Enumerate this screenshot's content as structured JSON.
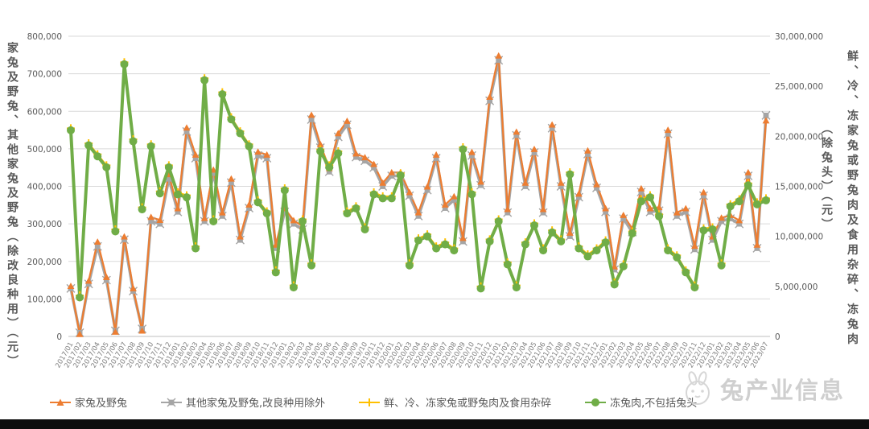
{
  "watermark": {
    "text": "兔产业信息"
  },
  "chart_data": {
    "type": "line",
    "title": "",
    "grid": true,
    "legend_position": "bottom",
    "x": [
      "2017/01",
      "2017/02",
      "2017/03",
      "2017/04",
      "2017/05",
      "2017/06",
      "2017/07",
      "2017/08",
      "2017/09",
      "2017/10",
      "2017/11",
      "2017/12",
      "2018/01",
      "2018/02",
      "2018/03",
      "2018/04",
      "2018/05",
      "2018/06",
      "2018/07",
      "2018/08",
      "2018/09",
      "2018/10",
      "2018/11",
      "2018/12",
      "2019/01",
      "2019/02",
      "2019/03",
      "2019/04",
      "2019/05",
      "2019/06",
      "2019/07",
      "2019/08",
      "2019/09",
      "2019/10",
      "2019/11",
      "2019/12",
      "2020/01",
      "2020/02",
      "2020/03",
      "2020/04",
      "2020/05",
      "2020/06",
      "2020/07",
      "2020/08",
      "2020/09",
      "2020/10",
      "2020/11",
      "2020/12",
      "2021/01",
      "2021/02",
      "2021/03",
      "2021/04",
      "2021/05",
      "2021/06",
      "2021/07",
      "2021/08",
      "2021/09",
      "2021/10",
      "2021/11",
      "2021/12",
      "2022/01",
      "2022/02",
      "2022/03",
      "2022/04",
      "2022/05",
      "2022/06",
      "2022/07",
      "2022/08",
      "2022/09",
      "2022/10",
      "2022/11",
      "2022/12",
      "2023/01",
      "2023/02",
      "2023/03",
      "2023/04",
      "2023/05",
      "2023/06",
      "2023/07"
    ],
    "left_axis": {
      "title": "家兔及野兔、其他家兔及野兔（除改良种用）（元）",
      "min": 0,
      "max": 800000,
      "step": 100000
    },
    "right_axis": {
      "title": "鲜、冷、冻家兔或野兔肉及食用杂碎、冻兔肉（除兔头）（元）",
      "title_col1": "鲜、冷、冻家兔或野兔肉及食用杂碎、冻兔肉",
      "title_col2": "（除兔头）（元）",
      "min": 0,
      "max": 30000000,
      "step": 5000000
    },
    "series": [
      {
        "name": "家兔及野兔",
        "axis": "left",
        "color": "#ED7D31",
        "marker": "triangle",
        "line_width": 2.2,
        "values": [
          134000,
          6000,
          148000,
          252000,
          158000,
          12000,
          266000,
          128000,
          15000,
          318000,
          310000,
          432000,
          341000,
          556000,
          484000,
          315000,
          444000,
          330000,
          420000,
          266000,
          351000,
          492000,
          484000,
          244000,
          341000,
          309000,
          294000,
          590000,
          512000,
          448000,
          541000,
          574000,
          487000,
          477000,
          459000,
          409000,
          437000,
          437000,
          384000,
          330000,
          399000,
          484000,
          351000,
          373000,
          262000,
          491000,
          412000,
          638000,
          748000,
          339000,
          545000,
          409000,
          499000,
          339000,
          564000,
          409000,
          276000,
          380000,
          495000,
          405000,
          341000,
          186000,
          323000,
          287000,
          394000,
          341000,
          344000,
          550000,
          330000,
          341000,
          241000,
          384000,
          266000,
          316000,
          323000,
          309000,
          437000,
          244000,
          575000
        ]
      },
      {
        "name": "其他家兔及野兔,改良种用除外",
        "axis": "left",
        "color": "#A5A5A5",
        "marker": "x-square",
        "line_width": 3.5,
        "values": [
          128000,
          10000,
          140000,
          240000,
          150000,
          15000,
          258000,
          121000,
          20000,
          307000,
          300000,
          420000,
          332000,
          546000,
          475000,
          307000,
          435000,
          321000,
          410000,
          257000,
          342000,
          482000,
          475000,
          235000,
          332000,
          300000,
          285000,
          578000,
          503000,
          439000,
          532000,
          564000,
          478000,
          468000,
          450000,
          400000,
          428000,
          428000,
          375000,
          321000,
          390000,
          475000,
          342000,
          364000,
          253000,
          482000,
          403000,
          628000,
          736000,
          330000,
          536000,
          400000,
          490000,
          330000,
          555000,
          400000,
          267000,
          371000,
          486000,
          396000,
          332000,
          178000,
          314000,
          278000,
          385000,
          332000,
          335000,
          540000,
          321000,
          332000,
          232000,
          375000,
          257000,
          307000,
          314000,
          300000,
          428000,
          235000,
          589000
        ]
      },
      {
        "name": "鲜、冷、冻家兔或野兔肉及食用杂碎",
        "axis": "right",
        "color": "#FFC000",
        "marker": "plus",
        "line_width": 2,
        "values": [
          20800000,
          4100000,
          19300000,
          18200000,
          17100000,
          10700000,
          27400000,
          19700000,
          12900000,
          19200000,
          14500000,
          17100000,
          14400000,
          14100000,
          9000000,
          25800000,
          11700000,
          24400000,
          21900000,
          20500000,
          19200000,
          13600000,
          12500000,
          6600000,
          14800000,
          5100000,
          11700000,
          7300000,
          18700000,
          17100000,
          18500000,
          12500000,
          13000000,
          10900000,
          14400000,
          14000000,
          14000000,
          16300000,
          7300000,
          9800000,
          10200000,
          9000000,
          9400000,
          8800000,
          18900000,
          14400000,
          5000000,
          9700000,
          11700000,
          7400000,
          5100000,
          9400000,
          11300000,
          8800000,
          10600000,
          9700000,
          16400000,
          9000000,
          8200000,
          8800000,
          9600000,
          5400000,
          7200000,
          10500000,
          13700000,
          14100000,
          12200000,
          8800000,
          8100000,
          6600000,
          5100000,
          10800000,
          10900000,
          7300000,
          13200000,
          13700000,
          15300000,
          13400000,
          13800000
        ]
      },
      {
        "name": "冻兔肉,不包括兔头",
        "axis": "right",
        "color": "#70AD47",
        "marker": "circle",
        "line_width": 4,
        "values": [
          20600000,
          3900000,
          19100000,
          18000000,
          16900000,
          10500000,
          27200000,
          19500000,
          12700000,
          19000000,
          14300000,
          16900000,
          14200000,
          13900000,
          8800000,
          25600000,
          11500000,
          24200000,
          21700000,
          20300000,
          19000000,
          13400000,
          12300000,
          6400000,
          14600000,
          4900000,
          11500000,
          7100000,
          18500000,
          16900000,
          18300000,
          12300000,
          12800000,
          10700000,
          14200000,
          13800000,
          13800000,
          16100000,
          7100000,
          9600000,
          10000000,
          8800000,
          9200000,
          8600000,
          18700000,
          14200000,
          4800000,
          9500000,
          11500000,
          7200000,
          4900000,
          9200000,
          11100000,
          8600000,
          10400000,
          9500000,
          16200000,
          8800000,
          8000000,
          8600000,
          9400000,
          5200000,
          7000000,
          10300000,
          13500000,
          13900000,
          12000000,
          8600000,
          7900000,
          6400000,
          4900000,
          10600000,
          10700000,
          7100000,
          13000000,
          13500000,
          15100000,
          13200000,
          13600000
        ]
      }
    ]
  }
}
